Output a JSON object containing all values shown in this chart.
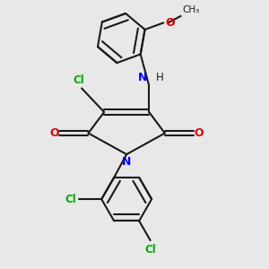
{
  "bg_color": "#e8e8e8",
  "bond_color": "#1a1a1a",
  "bond_width": 1.5,
  "dbo": 0.12,
  "cl_color": "#00aa00",
  "n_color": "#0000ff",
  "o_color": "#dd0000",
  "figsize": [
    3.0,
    3.0
  ],
  "dpi": 100,
  "xlim": [
    0,
    10
  ],
  "ylim": [
    0,
    10
  ]
}
